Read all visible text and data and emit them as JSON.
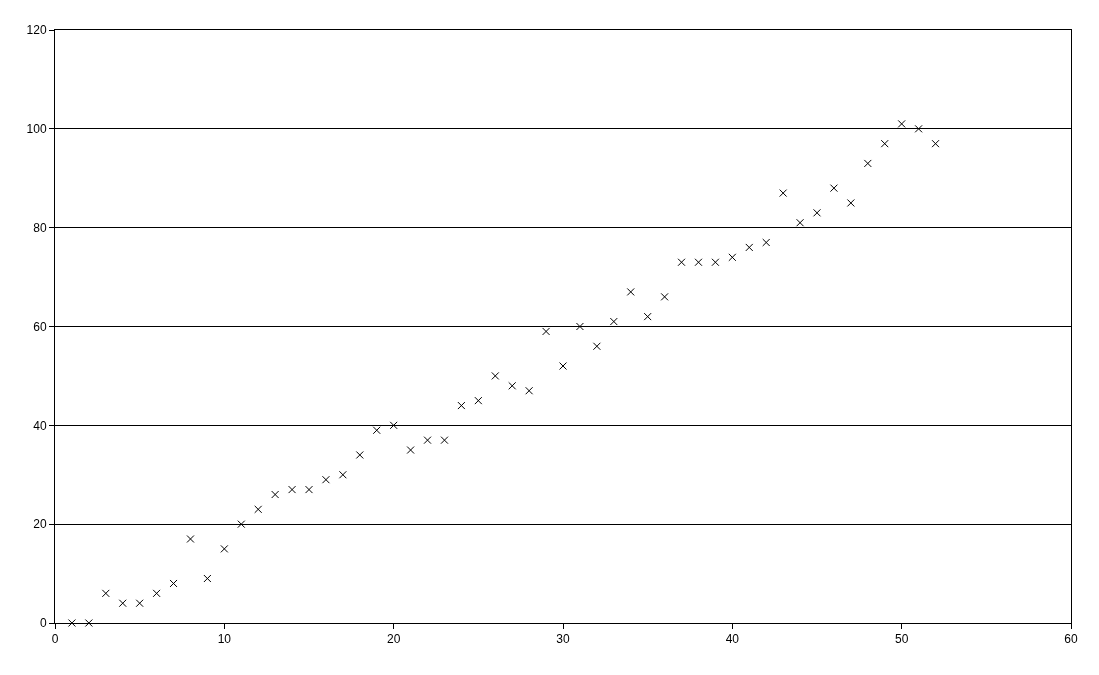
{
  "chart_data": {
    "type": "scatter",
    "marker": "cross",
    "grid": "y",
    "x": [
      1,
      2,
      3,
      4,
      5,
      6,
      7,
      8,
      9,
      10,
      11,
      12,
      13,
      14,
      15,
      16,
      17,
      18,
      19,
      20,
      21,
      22,
      23,
      24,
      25,
      26,
      27,
      28,
      29,
      30,
      31,
      32,
      33,
      34,
      35,
      36,
      37,
      38,
      39,
      40,
      41,
      42,
      43,
      44,
      45,
      46,
      47,
      48,
      49,
      50,
      51,
      52
    ],
    "series": [
      {
        "color": "#000000",
        "values": [
          0,
          0,
          6,
          4,
          4,
          6,
          8,
          17,
          9,
          15,
          20,
          23,
          26,
          27,
          27,
          29,
          30,
          34,
          39,
          40,
          35,
          37,
          37,
          44,
          45,
          50,
          48,
          47,
          59,
          52,
          60,
          56,
          61,
          67,
          62,
          66,
          73,
          73,
          73,
          74,
          76,
          77,
          87,
          81,
          83,
          88,
          85,
          93,
          97,
          101,
          100,
          97
        ]
      }
    ],
    "xlim": [
      0,
      60
    ],
    "xticks": [
      0,
      10,
      20,
      30,
      40,
      50,
      60
    ],
    "ylim": [
      0,
      120
    ],
    "yticks": [
      0,
      20,
      40,
      60,
      80,
      100,
      120
    ]
  }
}
